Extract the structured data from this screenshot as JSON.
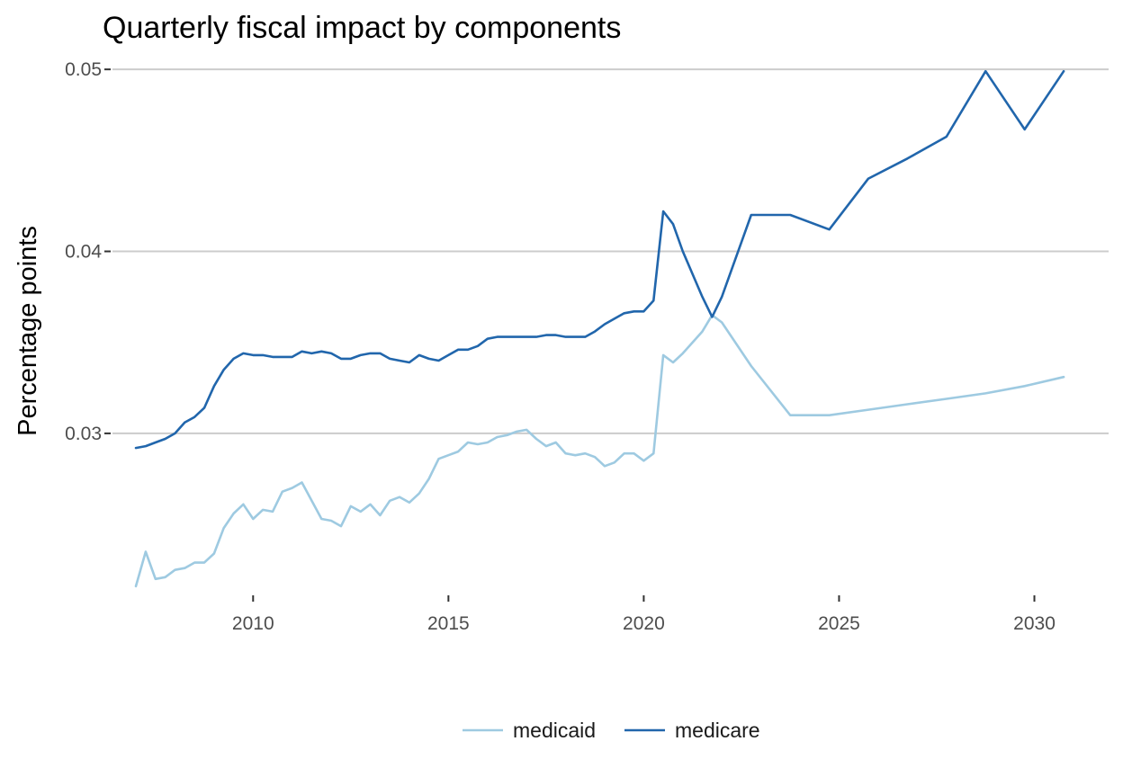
{
  "chart_data": {
    "type": "line",
    "title": "Quarterly fiscal impact  by components",
    "xlabel": "",
    "ylabel": "Percentage points",
    "xlim": [
      2006.4,
      2031.9
    ],
    "ylim": [
      0.0212,
      0.0506
    ],
    "x_ticks": [
      2010,
      2015,
      2020,
      2025,
      2030
    ],
    "x_tick_labels": [
      "2010",
      "2015",
      "2020",
      "2025",
      "2030"
    ],
    "y_ticks": [
      0.03,
      0.04,
      0.05
    ],
    "y_tick_labels": [
      "0.03",
      "0.04",
      "0.05"
    ],
    "grid": "horizontal major",
    "legend_position": "bottom",
    "series": [
      {
        "name": "medicaid",
        "color": "#9ecae1",
        "points": [
          [
            2007.0,
            0.0216
          ],
          [
            2007.25,
            0.0235
          ],
          [
            2007.5,
            0.022
          ],
          [
            2007.75,
            0.0221
          ],
          [
            2008.0,
            0.0225
          ],
          [
            2008.25,
            0.0226
          ],
          [
            2008.5,
            0.0229
          ],
          [
            2008.75,
            0.0229
          ],
          [
            2009.0,
            0.0234
          ],
          [
            2009.25,
            0.0248
          ],
          [
            2009.5,
            0.0256
          ],
          [
            2009.75,
            0.0261
          ],
          [
            2010.0,
            0.0253
          ],
          [
            2010.25,
            0.0258
          ],
          [
            2010.5,
            0.0257
          ],
          [
            2010.75,
            0.0268
          ],
          [
            2011.0,
            0.027
          ],
          [
            2011.25,
            0.0273
          ],
          [
            2011.5,
            0.0263
          ],
          [
            2011.75,
            0.0253
          ],
          [
            2012.0,
            0.0252
          ],
          [
            2012.25,
            0.0249
          ],
          [
            2012.5,
            0.026
          ],
          [
            2012.75,
            0.0257
          ],
          [
            2013.0,
            0.0261
          ],
          [
            2013.25,
            0.0255
          ],
          [
            2013.5,
            0.0263
          ],
          [
            2013.75,
            0.0265
          ],
          [
            2014.0,
            0.0262
          ],
          [
            2014.25,
            0.0267
          ],
          [
            2014.5,
            0.0275
          ],
          [
            2014.75,
            0.0286
          ],
          [
            2015.0,
            0.0288
          ],
          [
            2015.25,
            0.029
          ],
          [
            2015.5,
            0.0295
          ],
          [
            2015.75,
            0.0294
          ],
          [
            2016.0,
            0.0295
          ],
          [
            2016.25,
            0.0298
          ],
          [
            2016.5,
            0.0299
          ],
          [
            2016.75,
            0.0301
          ],
          [
            2017.0,
            0.0302
          ],
          [
            2017.25,
            0.0297
          ],
          [
            2017.5,
            0.0293
          ],
          [
            2017.75,
            0.0295
          ],
          [
            2018.0,
            0.0289
          ],
          [
            2018.25,
            0.0288
          ],
          [
            2018.5,
            0.0289
          ],
          [
            2018.75,
            0.0287
          ],
          [
            2019.0,
            0.0282
          ],
          [
            2019.25,
            0.0284
          ],
          [
            2019.5,
            0.0289
          ],
          [
            2019.75,
            0.0289
          ],
          [
            2020.0,
            0.0285
          ],
          [
            2020.25,
            0.0289
          ],
          [
            2020.5,
            0.0343
          ],
          [
            2020.75,
            0.0339
          ],
          [
            2021.0,
            0.0344
          ],
          [
            2021.5,
            0.0356
          ],
          [
            2021.75,
            0.0365
          ],
          [
            2022.0,
            0.0361
          ],
          [
            2022.75,
            0.0337
          ],
          [
            2023.75,
            0.031
          ],
          [
            2024.75,
            0.031
          ],
          [
            2025.75,
            0.0313
          ],
          [
            2026.75,
            0.0316
          ],
          [
            2027.75,
            0.0319
          ],
          [
            2028.75,
            0.0322
          ],
          [
            2029.75,
            0.0326
          ],
          [
            2030.75,
            0.0331
          ]
        ]
      },
      {
        "name": "medicare",
        "color": "#2166ac",
        "points": [
          [
            2007.0,
            0.0292
          ],
          [
            2007.25,
            0.0293
          ],
          [
            2007.5,
            0.0295
          ],
          [
            2007.75,
            0.0297
          ],
          [
            2008.0,
            0.03
          ],
          [
            2008.25,
            0.0306
          ],
          [
            2008.5,
            0.0309
          ],
          [
            2008.75,
            0.0314
          ],
          [
            2009.0,
            0.0326
          ],
          [
            2009.25,
            0.0335
          ],
          [
            2009.5,
            0.0341
          ],
          [
            2009.75,
            0.0344
          ],
          [
            2010.0,
            0.0343
          ],
          [
            2010.25,
            0.0343
          ],
          [
            2010.5,
            0.0342
          ],
          [
            2010.75,
            0.0342
          ],
          [
            2011.0,
            0.0342
          ],
          [
            2011.25,
            0.0345
          ],
          [
            2011.5,
            0.0344
          ],
          [
            2011.75,
            0.0345
          ],
          [
            2012.0,
            0.0344
          ],
          [
            2012.25,
            0.0341
          ],
          [
            2012.5,
            0.0341
          ],
          [
            2012.75,
            0.0343
          ],
          [
            2013.0,
            0.0344
          ],
          [
            2013.25,
            0.0344
          ],
          [
            2013.5,
            0.0341
          ],
          [
            2013.75,
            0.034
          ],
          [
            2014.0,
            0.0339
          ],
          [
            2014.25,
            0.0343
          ],
          [
            2014.5,
            0.0341
          ],
          [
            2014.75,
            0.034
          ],
          [
            2015.0,
            0.0343
          ],
          [
            2015.25,
            0.0346
          ],
          [
            2015.5,
            0.0346
          ],
          [
            2015.75,
            0.0348
          ],
          [
            2016.0,
            0.0352
          ],
          [
            2016.25,
            0.0353
          ],
          [
            2016.5,
            0.0353
          ],
          [
            2016.75,
            0.0353
          ],
          [
            2017.0,
            0.0353
          ],
          [
            2017.25,
            0.0353
          ],
          [
            2017.5,
            0.0354
          ],
          [
            2017.75,
            0.0354
          ],
          [
            2018.0,
            0.0353
          ],
          [
            2018.25,
            0.0353
          ],
          [
            2018.5,
            0.0353
          ],
          [
            2018.75,
            0.0356
          ],
          [
            2019.0,
            0.036
          ],
          [
            2019.25,
            0.0363
          ],
          [
            2019.5,
            0.0366
          ],
          [
            2019.75,
            0.0367
          ],
          [
            2020.0,
            0.0367
          ],
          [
            2020.25,
            0.0373
          ],
          [
            2020.5,
            0.0422
          ],
          [
            2020.75,
            0.0415
          ],
          [
            2021.0,
            0.04
          ],
          [
            2021.5,
            0.0375
          ],
          [
            2021.75,
            0.0364
          ],
          [
            2022.0,
            0.0375
          ],
          [
            2022.75,
            0.042
          ],
          [
            2023.75,
            0.042
          ],
          [
            2024.75,
            0.0412
          ],
          [
            2025.75,
            0.044
          ],
          [
            2026.75,
            0.0451
          ],
          [
            2027.75,
            0.0463
          ],
          [
            2028.75,
            0.0499
          ],
          [
            2029.75,
            0.0467
          ],
          [
            2030.75,
            0.0499
          ]
        ]
      }
    ]
  }
}
